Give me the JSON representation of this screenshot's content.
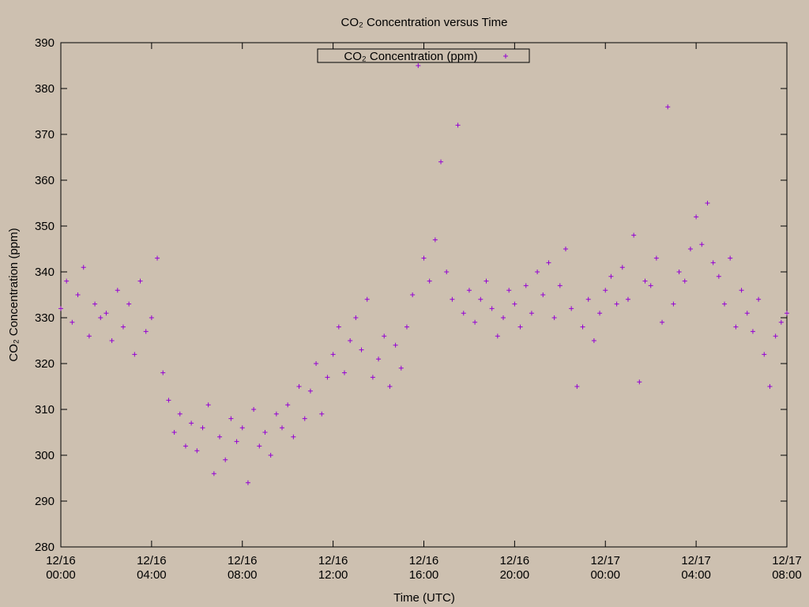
{
  "chart_data": {
    "type": "scatter",
    "title": "CO₂ Concentration versus Time",
    "x_label": "Time (UTC)",
    "y_label": "CO₂ Concentration (ppm)",
    "xlim": [
      "12/16 00:00",
      "12/17 08:00"
    ],
    "xticks": [
      "12/16 00:00",
      "12/16 04:00",
      "12/16 08:00",
      "12/16 12:00",
      "12/16 16:00",
      "12/16 20:00",
      "12/17 00:00",
      "12/17 04:00",
      "12/17 08:00"
    ],
    "ylim": [
      280,
      390
    ],
    "yticks": [
      280,
      290,
      300,
      310,
      320,
      330,
      340,
      350,
      360,
      370,
      380,
      390
    ],
    "legend": "top-center",
    "x": [
      "12/16 00:00",
      "12/16 00:15",
      "12/16 00:30",
      "12/16 00:45",
      "12/16 01:00",
      "12/16 01:15",
      "12/16 01:30",
      "12/16 01:45",
      "12/16 02:00",
      "12/16 02:15",
      "12/16 02:30",
      "12/16 02:45",
      "12/16 03:00",
      "12/16 03:15",
      "12/16 03:30",
      "12/16 03:45",
      "12/16 04:00",
      "12/16 04:15",
      "12/16 04:30",
      "12/16 04:45",
      "12/16 05:00",
      "12/16 05:15",
      "12/16 05:30",
      "12/16 05:45",
      "12/16 06:00",
      "12/16 06:15",
      "12/16 06:30",
      "12/16 06:45",
      "12/16 07:00",
      "12/16 07:15",
      "12/16 07:30",
      "12/16 07:45",
      "12/16 08:00",
      "12/16 08:15",
      "12/16 08:30",
      "12/16 08:45",
      "12/16 09:00",
      "12/16 09:15",
      "12/16 09:30",
      "12/16 09:45",
      "12/16 10:00",
      "12/16 10:15",
      "12/16 10:30",
      "12/16 10:45",
      "12/16 11:00",
      "12/16 11:15",
      "12/16 11:30",
      "12/16 11:45",
      "12/16 12:00",
      "12/16 12:15",
      "12/16 12:30",
      "12/16 12:45",
      "12/16 13:00",
      "12/16 13:15",
      "12/16 13:30",
      "12/16 13:45",
      "12/16 14:00",
      "12/16 14:15",
      "12/16 14:30",
      "12/16 14:45",
      "12/16 15:00",
      "12/16 15:15",
      "12/16 15:30",
      "12/16 15:45",
      "12/16 16:00",
      "12/16 16:15",
      "12/16 16:30",
      "12/16 16:45",
      "12/16 17:00",
      "12/16 17:15",
      "12/16 17:30",
      "12/16 17:45",
      "12/16 18:00",
      "12/16 18:15",
      "12/16 18:30",
      "12/16 18:45",
      "12/16 19:00",
      "12/16 19:15",
      "12/16 19:30",
      "12/16 19:45",
      "12/16 20:00",
      "12/16 20:15",
      "12/16 20:30",
      "12/16 20:45",
      "12/16 21:00",
      "12/16 21:15",
      "12/16 21:30",
      "12/16 21:45",
      "12/16 22:00",
      "12/16 22:15",
      "12/16 22:30",
      "12/16 22:45",
      "12/16 23:00",
      "12/16 23:15",
      "12/16 23:30",
      "12/16 23:45",
      "12/17 00:00",
      "12/17 00:15",
      "12/17 00:30",
      "12/17 00:45",
      "12/17 01:00",
      "12/17 01:15",
      "12/17 01:30",
      "12/17 01:45",
      "12/17 02:00",
      "12/17 02:15",
      "12/17 02:30",
      "12/17 02:45",
      "12/17 03:00",
      "12/17 03:15",
      "12/17 03:30",
      "12/17 03:45",
      "12/17 04:00",
      "12/17 04:15",
      "12/17 04:30",
      "12/17 04:45",
      "12/17 05:00",
      "12/17 05:15",
      "12/17 05:30",
      "12/17 05:45",
      "12/17 06:00",
      "12/17 06:15",
      "12/17 06:30",
      "12/17 06:45",
      "12/17 07:00",
      "12/17 07:15",
      "12/17 07:30",
      "12/17 07:45",
      "12/17 08:00"
    ],
    "series": [
      {
        "name": "CO₂ Concentration (ppm)",
        "color": "#9400d3",
        "values": [
          332,
          338,
          329,
          335,
          341,
          326,
          333,
          330,
          331,
          325,
          336,
          328,
          333,
          322,
          338,
          327,
          330,
          343,
          318,
          312,
          305,
          309,
          302,
          307,
          301,
          306,
          311,
          296,
          304,
          299,
          308,
          303,
          306,
          294,
          310,
          302,
          305,
          300,
          309,
          306,
          311,
          304,
          315,
          308,
          314,
          320,
          309,
          317,
          322,
          328,
          318,
          325,
          330,
          323,
          334,
          317,
          321,
          326,
          315,
          324,
          319,
          328,
          335,
          385,
          343,
          338,
          347,
          364,
          340,
          334,
          372,
          331,
          336,
          329,
          334,
          338,
          332,
          326,
          330,
          336,
          333,
          328,
          337,
          331,
          340,
          335,
          342,
          330,
          337,
          345,
          332,
          315,
          328,
          334,
          325,
          331,
          336,
          339,
          333,
          341,
          334,
          348,
          316,
          338,
          337,
          343,
          329,
          376,
          333,
          340,
          338,
          345,
          352,
          346,
          355,
          342,
          339,
          333,
          343,
          328,
          336,
          331,
          327,
          334,
          322,
          315,
          326,
          329,
          331
        ]
      }
    ]
  }
}
